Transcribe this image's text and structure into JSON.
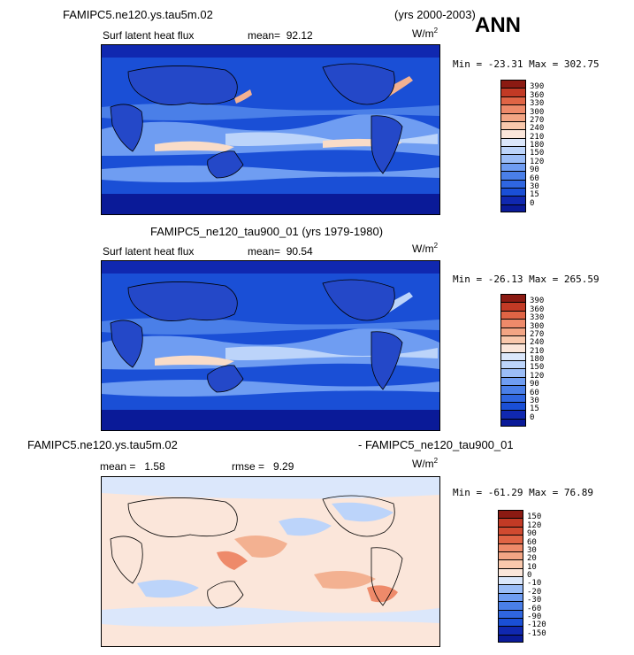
{
  "season": "ANN",
  "panels": [
    {
      "case": "FAMIPC5.ne120.ys.tau5m.02",
      "years": "(yrs 2000-2003)",
      "variable": "Surf latent heat flux",
      "mean_label": "mean=",
      "mean": "92.12",
      "units": "W/m",
      "units_exp": "2",
      "min_label": "Min =",
      "min": "-23.31",
      "max_label": "Max =",
      "max": "302.75"
    },
    {
      "case": "FAMIPC5_ne120_tau900_01",
      "years": "(yrs 1979-1980)",
      "variable": "Surf latent heat flux",
      "mean_label": "mean=",
      "mean": "90.54",
      "units": "W/m",
      "units_exp": "2",
      "min_label": "Min =",
      "min": "-26.13",
      "max_label": "Max =",
      "max": "265.59"
    },
    {
      "case_a": "FAMIPC5.ne120.ys.tau5m.02",
      "case_b": "- FAMIPC5_ne120_tau900_01",
      "mean_label": "mean =",
      "mean": "1.58",
      "rmse_label": "rmse =",
      "rmse": "9.29",
      "units": "W/m",
      "units_exp": "2",
      "min_label": "Min =",
      "min": "-61.29",
      "max_label": "Max =",
      "max": "76.89"
    }
  ],
  "chart_data": [
    {
      "type": "heatmap",
      "title": "FAMIPC5.ne120.ys.tau5m.02",
      "variable": "Surf latent heat flux",
      "units": "W/m2",
      "mean": 92.12,
      "min": -23.31,
      "max": 302.75,
      "colorbar_levels": [
        "0",
        "15",
        "30",
        "60",
        "90",
        "120",
        "150",
        "180",
        "210",
        "240",
        "270",
        "300",
        "330",
        "360",
        "390"
      ],
      "colorbar_colors": [
        "#0a1a98",
        "#1028b0",
        "#1a4fd6",
        "#2f66e0",
        "#4a7fe8",
        "#6f9df2",
        "#9bbdf7",
        "#bcd4fa",
        "#dbe7fb",
        "#fbe6da",
        "#f9c8ac",
        "#f3a584",
        "#ee8a6a",
        "#e06445",
        "#c23a25",
        "#8b1a12"
      ]
    },
    {
      "type": "heatmap",
      "title": "FAMIPC5_ne120_tau900_01 (yrs 1979-1980)",
      "variable": "Surf latent heat flux",
      "units": "W/m2",
      "mean": 90.54,
      "min": -26.13,
      "max": 265.59,
      "colorbar_levels": [
        "0",
        "15",
        "30",
        "60",
        "90",
        "120",
        "150",
        "180",
        "210",
        "240",
        "270",
        "300",
        "330",
        "360",
        "390"
      ],
      "colorbar_colors": [
        "#0a1a98",
        "#1028b0",
        "#1a4fd6",
        "#2f66e0",
        "#4a7fe8",
        "#6f9df2",
        "#9bbdf7",
        "#bcd4fa",
        "#dbe7fb",
        "#fbe6da",
        "#f9c8ac",
        "#f3a584",
        "#ee8a6a",
        "#e06445",
        "#c23a25",
        "#8b1a12"
      ]
    },
    {
      "type": "heatmap",
      "title": "FAMIPC5.ne120.ys.tau5m.02 - FAMIPC5_ne120_tau900_01",
      "units": "W/m2",
      "mean": 1.58,
      "rmse": 9.29,
      "min": -61.29,
      "max": 76.89,
      "colorbar_levels": [
        "-150",
        "-120",
        "-90",
        "-60",
        "-30",
        "-20",
        "-10",
        "0",
        "10",
        "20",
        "30",
        "60",
        "90",
        "120",
        "150"
      ],
      "colorbar_colors": [
        "#0a1a98",
        "#1028b0",
        "#1a4fd6",
        "#2f66e0",
        "#4a7fe8",
        "#6f9df2",
        "#9bbdf7",
        "#dbe7fb",
        "#fbe6da",
        "#f9c8ac",
        "#f3a584",
        "#ee8a6a",
        "#e06445",
        "#d04a30",
        "#c23a25",
        "#8b1a12"
      ]
    }
  ]
}
